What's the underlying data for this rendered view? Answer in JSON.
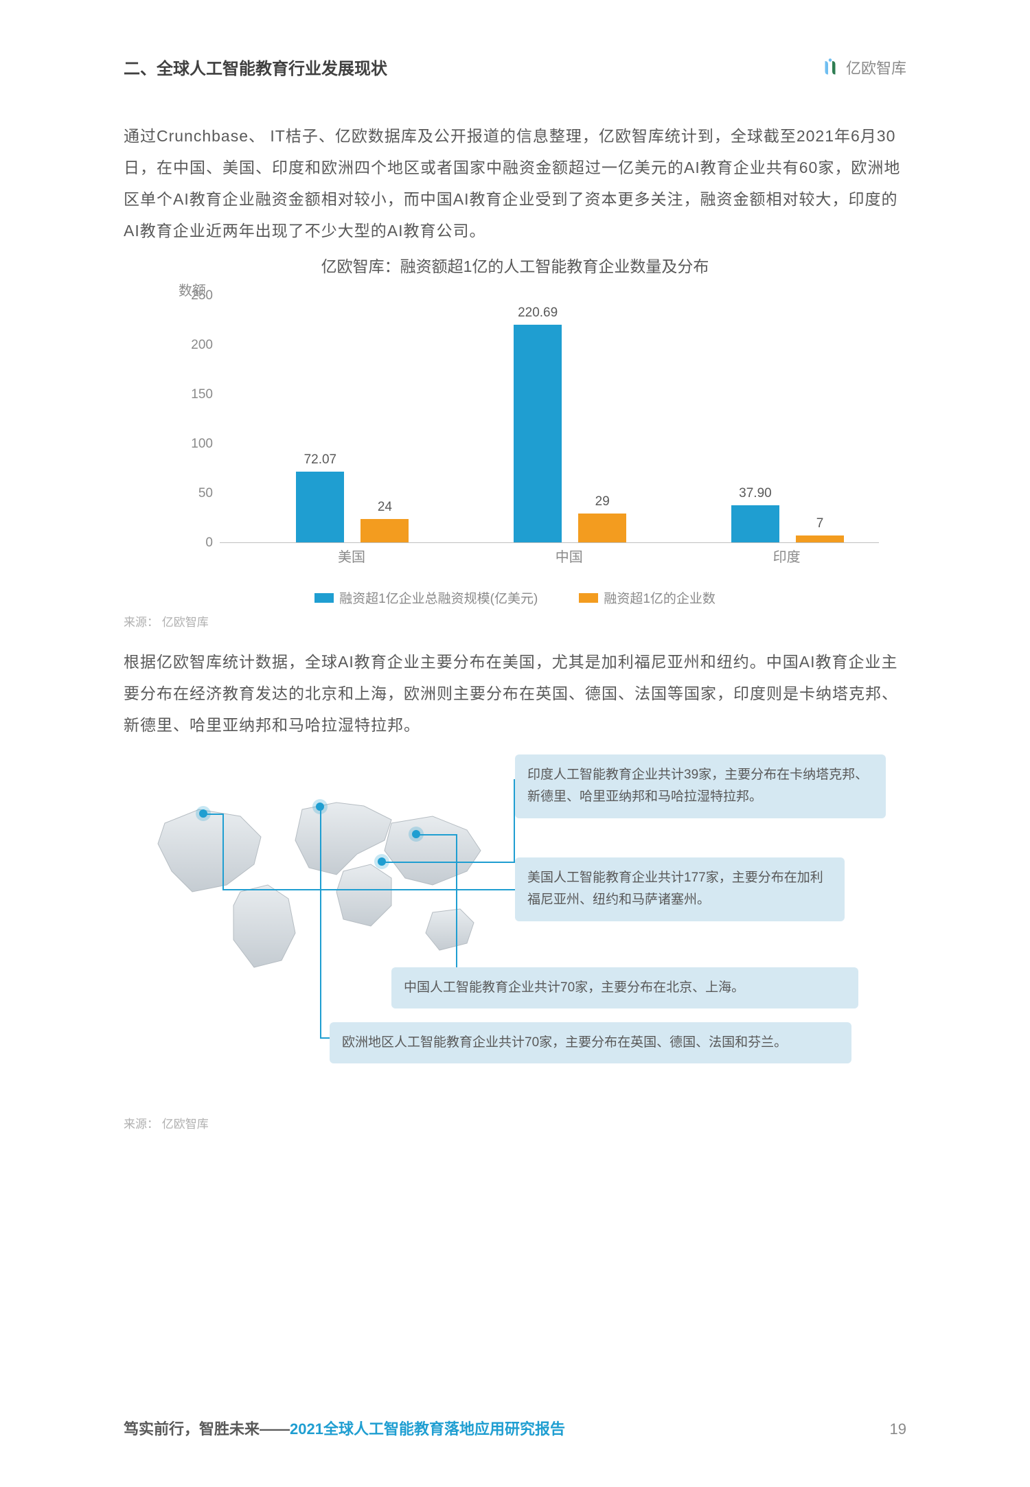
{
  "header": {
    "section_title": "二、全球人工智能教育行业发展现状",
    "logo_text": "亿欧智库"
  },
  "para1": "通过Crunchbase、 IT桔子、亿欧数据库及公开报道的信息整理，亿欧智库统计到，全球截至2021年6月30日，在中国、美国、印度和欧洲四个地区或者国家中融资金额超过一亿美元的AI教育企业共有60家，欧洲地区单个AI教育企业融资金额相对较小，而中国AI教育企业受到了资本更多关注，融资金额相对较大，印度的AI教育企业近两年出现了不少大型的AI教育公司。",
  "chart": {
    "title": "亿欧智库：融资额超1亿的人工智能教育企业数量及分布",
    "y_axis_label": "数额",
    "y_ticks": [
      "0",
      "50",
      "100",
      "150",
      "200",
      "250"
    ],
    "y_max": 250,
    "categories": [
      "美国",
      "中国",
      "印度"
    ],
    "series_amount": {
      "color": "#1f9ed1",
      "label": "融资超1亿企业总融资规模(亿美元)",
      "values": [
        72.07,
        220.69,
        37.9
      ],
      "labels": [
        "72.07",
        "220.69",
        "37.90"
      ]
    },
    "series_count": {
      "color": "#f39c1f",
      "label": "融资超1亿的企业数",
      "values": [
        24,
        29,
        7
      ],
      "labels": [
        "24",
        "29",
        "7"
      ]
    }
  },
  "source_label": "来源： 亿欧智库",
  "para2": "根据亿欧智库统计数据，全球AI教育企业主要分布在美国，尤其是加利福尼亚州和纽约。中国AI教育企业主要分布在经济教育发达的北京和上海，欧洲则主要分布在英国、德国、法国等国家，印度则是卡纳塔克邦、新德里、哈里亚纳邦和马哈拉湿特拉邦。",
  "callouts": {
    "india": "印度人工智能教育企业共计39家，主要分布在卡纳塔克邦、新德里、哈里亚纳邦和马哈拉湿特拉邦。",
    "usa": "美国人工智能教育企业共计177家，主要分布在加利福尼亚州、纽约和马萨诸塞州。",
    "china": "中国人工智能教育企业共计70家，主要分布在北京、上海。",
    "europe": "欧洲地区人工智能教育企业共计70家，主要分布在英国、德国、法国和芬兰。"
  },
  "callout_bg": "#d5e8f2",
  "footer": {
    "prefix": "笃实前行，智胜未来——",
    "title": "2021全球人工智能教育落地应用研究报告",
    "page": "19"
  }
}
